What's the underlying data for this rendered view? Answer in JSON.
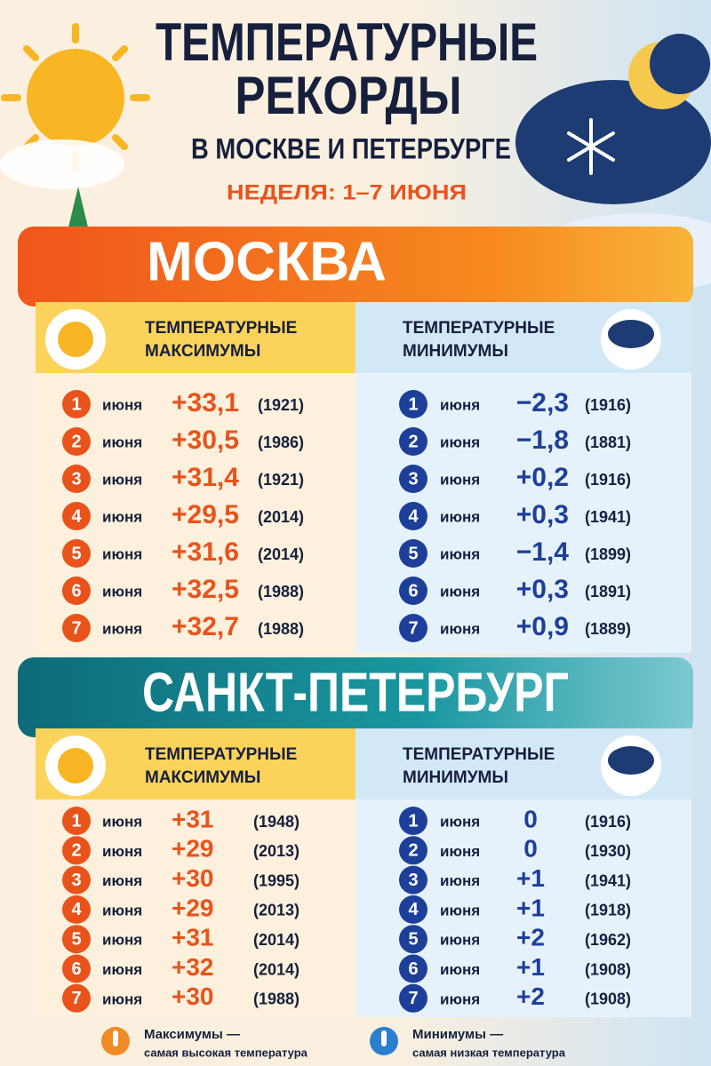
{
  "header": {
    "title_line1": "ТЕМПЕРАТУРНЫЕ",
    "title_line2": "РЕКОРДЫ",
    "subtitle": "В МОСКВЕ И ПЕТЕРБУРГЕ",
    "week": "НЕДЕЛЯ: 1–7 ИЮНЯ"
  },
  "sections": [
    {
      "city": "МОСКВА",
      "max_header": [
        "ТЕМПЕРАТУРНЫЕ",
        "МАКСИМУМЫ"
      ],
      "min_header": [
        "ТЕМПЕРАТУРНЫЕ",
        "МИНИМУМЫ"
      ],
      "max_rows": [
        {
          "day": "1",
          "month": "июня",
          "value": "+33,1",
          "year": "(1921)"
        },
        {
          "day": "2",
          "month": "июня",
          "value": "+30,5",
          "year": "(1986)"
        },
        {
          "day": "3",
          "month": "июня",
          "value": "+31,4",
          "year": "(1921)"
        },
        {
          "day": "4",
          "month": "июня",
          "value": "+29,5",
          "year": "(2014)"
        },
        {
          "day": "5",
          "month": "июня",
          "value": "+31,6",
          "year": "(2014)"
        },
        {
          "day": "6",
          "month": "июня",
          "value": "+32,5",
          "year": "(1988)"
        },
        {
          "day": "7",
          "month": "июня",
          "value": "+32,7",
          "year": "(1988)"
        }
      ],
      "min_rows": [
        {
          "day": "1",
          "month": "июня",
          "value": "−2,3",
          "year": "(1916)"
        },
        {
          "day": "2",
          "month": "июня",
          "value": "−1,8",
          "year": "(1881)"
        },
        {
          "day": "3",
          "month": "июня",
          "value": "+0,2",
          "year": "(1916)"
        },
        {
          "day": "4",
          "month": "июня",
          "value": "+0,3",
          "year": "(1941)"
        },
        {
          "day": "5",
          "month": "июня",
          "value": "−1,4",
          "year": "(1899)"
        },
        {
          "day": "6",
          "month": "июня",
          "value": "+0,3",
          "year": "(1891)"
        },
        {
          "day": "7",
          "month": "июня",
          "value": "+0,9",
          "year": "(1889)"
        }
      ]
    },
    {
      "city": "САНКТ-ПЕТЕРБУРГ",
      "max_header": [
        "ТЕМПЕРАТУРНЫЕ",
        "МАКСИМУМЫ"
      ],
      "min_header": [
        "ТЕМПЕРАТУРНЫЕ",
        "МИНИМУМЫ"
      ],
      "max_rows": [
        {
          "day": "1",
          "month": "июня",
          "value": "+31",
          "year": "(1948)"
        },
        {
          "day": "2",
          "month": "июня",
          "value": "+29",
          "year": "(2013)"
        },
        {
          "day": "3",
          "month": "июня",
          "value": "+30",
          "year": "(1995)"
        },
        {
          "day": "4",
          "month": "июня",
          "value": "+29",
          "year": "(2013)"
        },
        {
          "day": "5",
          "month": "июня",
          "value": "+31",
          "year": "(2014)"
        },
        {
          "day": "6",
          "month": "июня",
          "value": "+32",
          "year": "(2014)"
        },
        {
          "day": "7",
          "month": "июня",
          "value": "+30",
          "year": "(1988)"
        }
      ],
      "min_rows": [
        {
          "day": "1",
          "month": "июня",
          "value": "0",
          "year": "(1916)"
        },
        {
          "day": "2",
          "month": "июня",
          "value": "0",
          "year": "(1930)"
        },
        {
          "day": "3",
          "month": "июня",
          "value": "+1",
          "year": "(1941)"
        },
        {
          "day": "4",
          "month": "июня",
          "value": "+1",
          "year": "(1918)"
        },
        {
          "day": "5",
          "month": "июня",
          "value": "+2",
          "year": "(1962)"
        },
        {
          "day": "6",
          "month": "июня",
          "value": "+1",
          "year": "(1908)"
        },
        {
          "day": "7",
          "month": "июня",
          "value": "+2",
          "year": "(1908)"
        }
      ]
    }
  ],
  "legend": [
    {
      "title": "Максимумы —",
      "text": "самая высокая температура"
    },
    {
      "title": "Минимумы —",
      "text": "самая низкая температура"
    }
  ]
}
